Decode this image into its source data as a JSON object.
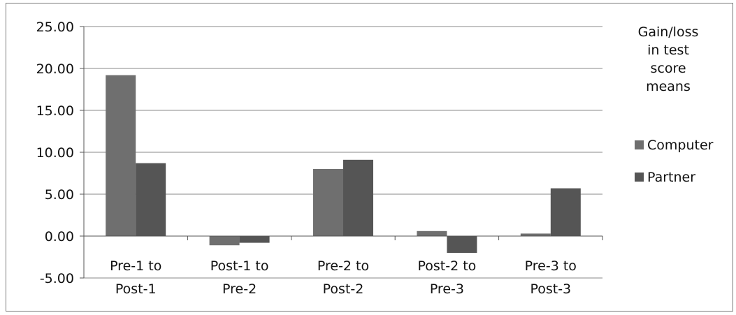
{
  "chart_data": {
    "type": "bar",
    "categories": [
      [
        "Pre-1  to",
        "Post-1"
      ],
      [
        "Post-1 to",
        "Pre-2"
      ],
      [
        "Pre-2 to",
        "Post-2"
      ],
      [
        "Post-2 to",
        "Pre-3"
      ],
      [
        "Pre-3 to",
        "Post-3"
      ]
    ],
    "series": [
      {
        "name": "Computer",
        "values": [
          19.2,
          -1.1,
          8.0,
          0.6,
          0.3
        ],
        "color": "#6f6f6f"
      },
      {
        "name": "Partner",
        "values": [
          8.7,
          -0.8,
          9.1,
          -2.0,
          5.7
        ],
        "color": "#555555"
      }
    ],
    "ylim": [
      -5,
      25
    ],
    "yticks": [
      "25.00",
      "20.00",
      "15.00",
      "10.00",
      "5.00",
      "0.00",
      "-5.00"
    ],
    "ytick_values": [
      25,
      20,
      15,
      10,
      5,
      0,
      -5
    ],
    "legend_title": [
      "Gain/loss",
      "in test",
      "score",
      "means"
    ],
    "legend_position": "right",
    "grid": true
  }
}
